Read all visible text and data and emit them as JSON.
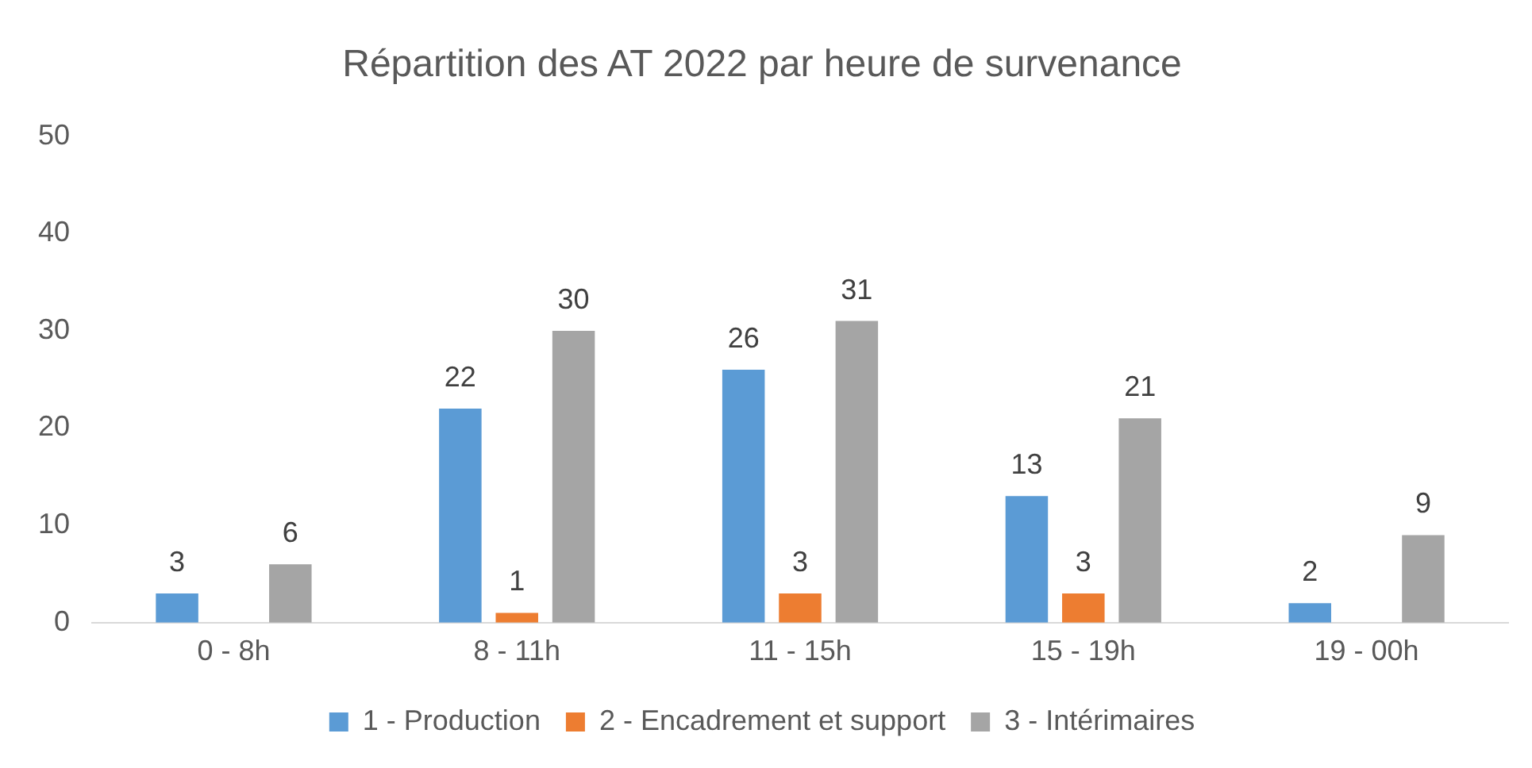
{
  "chart_data": {
    "type": "bar",
    "title": "Répartition des AT 2022 par heure de survenance",
    "categories": [
      "0 - 8h",
      "8 - 11h",
      "11 - 15h",
      "15 - 19h",
      "19 - 00h"
    ],
    "series": [
      {
        "name": "1 - Production",
        "color": "#5b9bd5",
        "values": [
          3,
          22,
          26,
          13,
          2
        ]
      },
      {
        "name": "2 - Encadrement et support",
        "color": "#ed7d31",
        "values": [
          null,
          1,
          3,
          3,
          null
        ]
      },
      {
        "name": "3 - Intérimaires",
        "color": "#a5a5a5",
        "values": [
          6,
          30,
          31,
          21,
          9
        ]
      }
    ],
    "ylim": [
      0,
      50
    ],
    "yticks": [
      0,
      10,
      20,
      30,
      40,
      50
    ],
    "grid": false,
    "legend": "bottom",
    "data_labels": true
  }
}
